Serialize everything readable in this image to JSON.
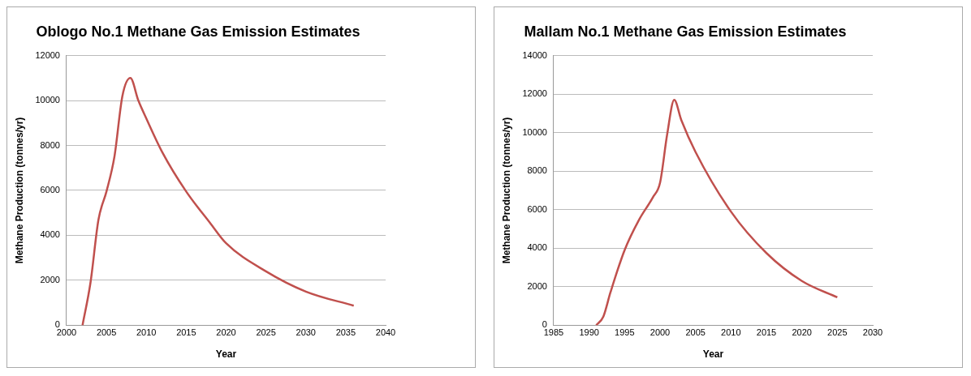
{
  "chart_data": [
    {
      "type": "line",
      "title": "Oblogo No.1 Methane Gas Emission Estimates",
      "xlabel": "Year",
      "ylabel": "Methane Production (tonnes/yr)",
      "xlim": [
        2000,
        2040
      ],
      "xticks": [
        2000,
        2005,
        2010,
        2015,
        2020,
        2025,
        2030,
        2035,
        2040
      ],
      "ylim": [
        0,
        12000
      ],
      "yticks": [
        0,
        2000,
        4000,
        6000,
        8000,
        10000,
        12000
      ],
      "grid": "y",
      "marker": "none",
      "legend": false,
      "x": [
        2002,
        2003,
        2004,
        2005,
        2006,
        2007,
        2008,
        2009,
        2010,
        2012,
        2015,
        2018,
        2020,
        2025,
        2030,
        2036
      ],
      "series": [
        {
          "color": "#c0504d",
          "values": [
            0,
            1900,
            4700,
            5950,
            7500,
            10200,
            11000,
            10000,
            9200,
            7700,
            5950,
            4550,
            3650,
            2400,
            1500,
            870
          ]
        }
      ]
    },
    {
      "type": "line",
      "title": "Mallam No.1 Methane Gas Emission Estimates",
      "xlabel": "Year",
      "ylabel": "Methane Production (tonnes/yr)",
      "xlim": [
        1985,
        2030
      ],
      "xticks": [
        1985,
        1990,
        1995,
        2000,
        2005,
        2010,
        2015,
        2020,
        2025,
        2030
      ],
      "ylim": [
        0,
        14000
      ],
      "yticks": [
        0,
        2000,
        4000,
        6000,
        8000,
        10000,
        12000,
        14000
      ],
      "grid": "y",
      "marker": "none",
      "legend": false,
      "x": [
        1991,
        1992,
        1993,
        1995,
        1997,
        1999,
        2000,
        2001,
        2002,
        2003,
        2005,
        2010,
        2015,
        2020,
        2025
      ],
      "series": [
        {
          "color": "#c0504d",
          "values": [
            0,
            450,
            1700,
            3900,
            5450,
            6650,
            7400,
            9900,
            11700,
            10650,
            9000,
            5900,
            3750,
            2300,
            1450
          ]
        }
      ]
    }
  ]
}
